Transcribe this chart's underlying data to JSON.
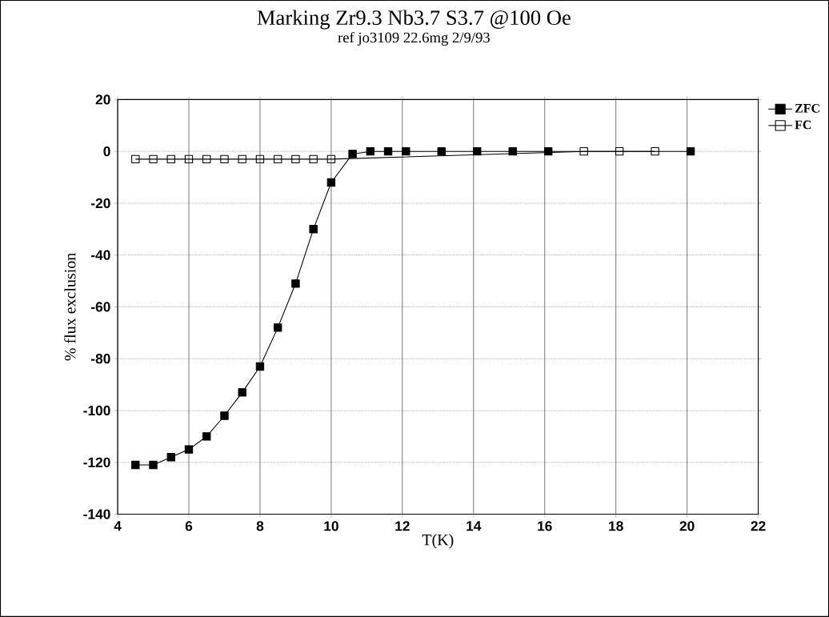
{
  "chart_data": {
    "type": "line",
    "title": "Marking  Zr9.3 Nb3.7 S3.7  @100 Oe",
    "subtitle": "ref jo3109  22.6mg  2/9/93",
    "xlabel": "T(K)",
    "ylabel": "% flux exclusion",
    "xlim": [
      4,
      22
    ],
    "xticks": [
      4,
      6,
      8,
      10,
      12,
      14,
      16,
      18,
      20,
      22
    ],
    "ylim": [
      -140,
      20
    ],
    "yticks": [
      -140,
      -120,
      -100,
      -80,
      -60,
      -40,
      -20,
      0,
      20
    ],
    "grid": true,
    "legend": "top right",
    "marker": "square",
    "line_style": "solid",
    "series": [
      {
        "name": "ZFC",
        "color": "#000000",
        "x": [
          4.5,
          5.0,
          5.5,
          6.0,
          6.5,
          7.0,
          7.5,
          8.0,
          8.5,
          9.0,
          9.5,
          10.0,
          10.6,
          11.1,
          11.6,
          12.1,
          13.1,
          14.1,
          15.1,
          16.1,
          20.1
        ],
        "values": [
          -121,
          -121,
          -118,
          -115,
          -110,
          -102,
          -93,
          -83,
          -68,
          -51,
          -30,
          -12,
          -1,
          0,
          0,
          0,
          0,
          0,
          0,
          0,
          0
        ]
      },
      {
        "name": "FC",
        "color": "#000000",
        "x": [
          4.5,
          5.0,
          5.5,
          6.0,
          6.5,
          7.0,
          7.5,
          8.0,
          8.5,
          9.0,
          9.5,
          10.0,
          17.1,
          18.1,
          19.1
        ],
        "values": [
          -3,
          -3,
          -3,
          -3,
          -3,
          -3,
          -3,
          -3,
          -3,
          -3,
          -3,
          -3,
          0,
          0,
          0
        ]
      }
    ]
  }
}
